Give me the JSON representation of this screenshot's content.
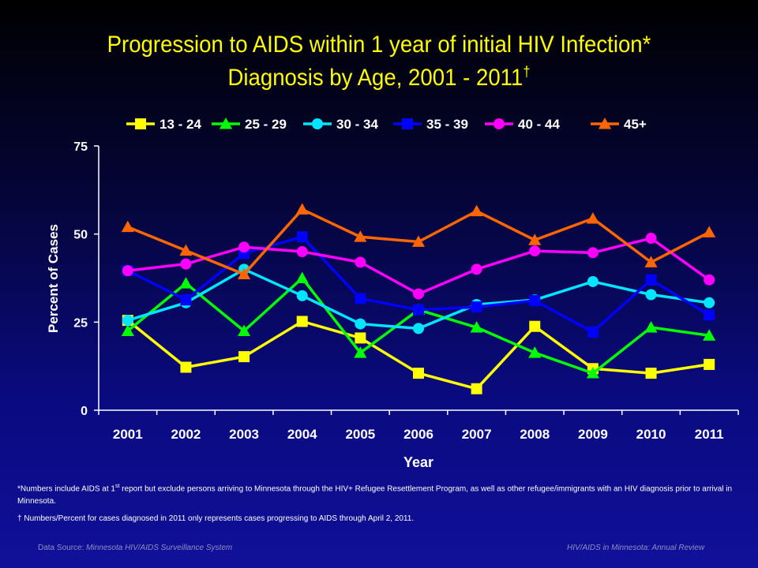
{
  "header": {
    "title_line1": "Progression to AIDS within 1 year of initial HIV Infection*",
    "title_line2": "Diagnosis by Age, 2001 - 2011",
    "title_dagger": "†"
  },
  "chart_data": {
    "type": "line",
    "title": "Progression to AIDS within 1 year of initial HIV Infection* Diagnosis by Age, 2001 - 2011†",
    "xlabel": "Year",
    "ylabel": "Percent of Cases",
    "ylim": [
      0,
      75
    ],
    "yticks": [
      0,
      25,
      50,
      75
    ],
    "legend_position": "top",
    "categories": [
      "2001",
      "2002",
      "2003",
      "2004",
      "2005",
      "2006",
      "2007",
      "2008",
      "2009",
      "2010",
      "2011"
    ],
    "series": [
      {
        "name": "13 - 24",
        "color": "#ffff00",
        "marker": "square",
        "values": [
          25.5,
          12.2,
          15.2,
          25.2,
          20.5,
          10.5,
          6.1,
          23.8,
          11.8,
          10.5,
          13.0
        ]
      },
      {
        "name": "25 - 29",
        "color": "#00ff00",
        "marker": "triangle",
        "values": [
          22.5,
          36.0,
          22.5,
          37.5,
          16.3,
          28.5,
          23.5,
          16.3,
          10.5,
          23.5,
          21.2
        ]
      },
      {
        "name": "30 - 34",
        "color": "#00e5ff",
        "marker": "circle",
        "values": [
          25.5,
          30.5,
          40.0,
          32.5,
          24.5,
          23.2,
          30.0,
          31.3,
          36.5,
          32.8,
          30.5
        ]
      },
      {
        "name": "35 - 39",
        "color": "#0000ff",
        "marker": "square",
        "values": [
          39.6,
          31.3,
          44.5,
          49.2,
          31.7,
          28.5,
          29.3,
          31.1,
          22.2,
          37.0,
          27.0
        ]
      },
      {
        "name": "40 - 44",
        "color": "#ff00ff",
        "marker": "circle",
        "values": [
          39.6,
          41.5,
          46.3,
          45.0,
          42.0,
          33.0,
          40.0,
          45.2,
          44.7,
          48.8,
          37.0
        ]
      },
      {
        "name": "45+",
        "color": "#ff6600",
        "marker": "triangle",
        "values": [
          52.0,
          45.3,
          38.6,
          57.0,
          49.2,
          47.8,
          56.5,
          48.3,
          54.4,
          42.0,
          50.5
        ]
      }
    ]
  },
  "footnotes": {
    "note1_a": "*Numbers include AIDS at 1",
    "note1_sup": "st",
    "note1_b": " report but exclude persons arriving to Minnesota through the HIV+ Refugee Resettlement Program, as well as other refugee/immigrants with an HIV diagnosis prior to arrival in Minnesota.",
    "note2_mark": "†",
    "note2": " Numbers/Percent for cases diagnosed in 2011 only represents cases progressing to AIDS through April 2, 2011."
  },
  "source": {
    "left_label": "Data Source: ",
    "left_value": "Minnesota HIV/AIDS Surveillance System",
    "right_value": "HIV/AIDS in Minnesota: Annual Review"
  }
}
